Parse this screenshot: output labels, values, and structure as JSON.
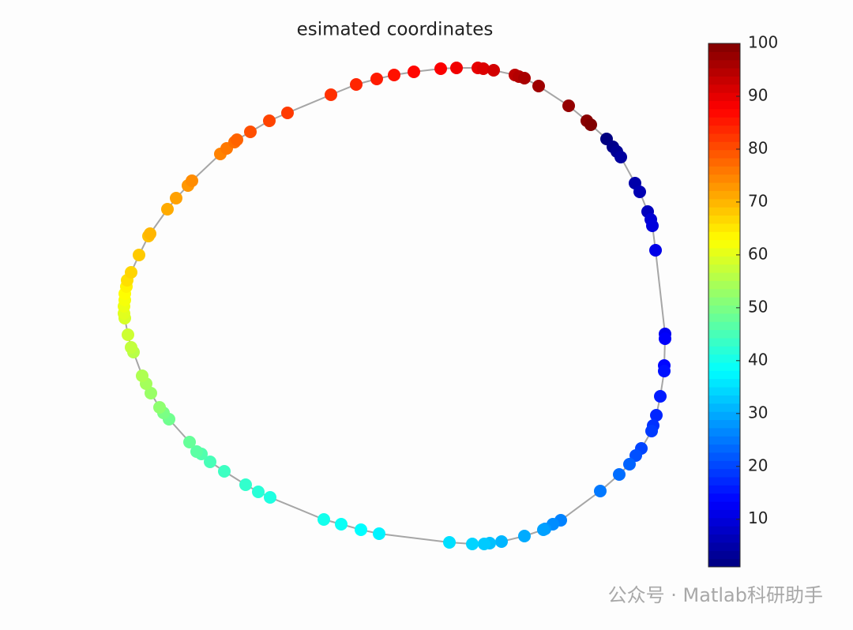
{
  "chart_data": {
    "type": "scatter",
    "title": "esimated coordinates",
    "x": [
      768,
      776,
      781,
      786,
      804,
      810,
      820,
      824,
      826,
      830,
      842,
      842,
      841,
      841,
      836,
      831,
      827,
      825,
      812,
      805,
      797,
      784,
      760,
      710,
      700,
      690,
      688,
      664,
      635,
      620,
      613,
      598,
      569,
      480,
      457,
      432,
      410,
      342,
      327,
      311,
      284,
      266,
      255,
      249,
      240,
      214,
      207,
      202,
      191,
      185,
      180,
      169,
      166,
      162,
      158,
      157,
      157,
      158,
      158,
      160,
      161,
      166,
      176,
      188,
      190,
      212,
      223,
      238,
      243,
      279,
      287,
      297,
      300,
      317,
      341,
      364,
      419,
      451,
      477,
      499,
      524,
      558,
      578,
      605,
      612,
      625,
      652,
      657,
      664,
      682,
      720,
      743,
      748
    ],
    "y": [
      176,
      186,
      192,
      199,
      232,
      243,
      268,
      278,
      286,
      317,
      423,
      429,
      463,
      470,
      502,
      526,
      539,
      546,
      568,
      577,
      588,
      601,
      622,
      659,
      664,
      670,
      671,
      679,
      686,
      688,
      689,
      689,
      687,
      676,
      671,
      664,
      658,
      630,
      623,
      614,
      597,
      585,
      575,
      572,
      560,
      531,
      523,
      516,
      498,
      486,
      476,
      446,
      440,
      424,
      403,
      397,
      388,
      380,
      372,
      363,
      355,
      345,
      323,
      299,
      296,
      265,
      251,
      235,
      229,
      195,
      188,
      180,
      177,
      167,
      153,
      143,
      120,
      107,
      100,
      95,
      91,
      87,
      86,
      86,
      87,
      89,
      95,
      97,
      99,
      109,
      134,
      153,
      158
    ],
    "c": [
      1,
      2,
      3,
      4,
      5,
      6,
      7,
      9,
      10,
      11,
      12,
      13,
      14,
      15,
      16,
      17,
      18,
      19,
      20,
      21,
      23,
      24,
      25,
      26,
      27,
      28,
      29,
      30,
      31,
      32,
      33,
      34,
      35,
      37,
      38,
      39,
      40,
      41,
      42,
      43,
      44,
      45,
      46,
      47,
      48,
      49,
      50,
      52,
      53,
      54,
      55,
      56,
      57,
      58,
      59,
      60,
      61,
      62,
      63,
      64,
      66,
      67,
      68,
      69,
      70,
      71,
      72,
      73,
      74,
      75,
      76,
      77,
      78,
      80,
      81,
      82,
      83,
      84,
      85,
      86,
      87,
      88,
      89,
      90,
      91,
      92,
      94,
      95,
      96,
      97,
      98,
      99,
      100
    ],
    "xlim": [
      140,
      860
    ],
    "ylim": [
      700,
      70
    ],
    "colormap": "jet",
    "clim": [
      1,
      100
    ],
    "cticks": [
      10,
      20,
      30,
      40,
      50,
      60,
      70,
      80,
      90,
      100
    ],
    "line_color": "#a6a6a6",
    "watermark": "公众号 · Matlab科研助手"
  }
}
